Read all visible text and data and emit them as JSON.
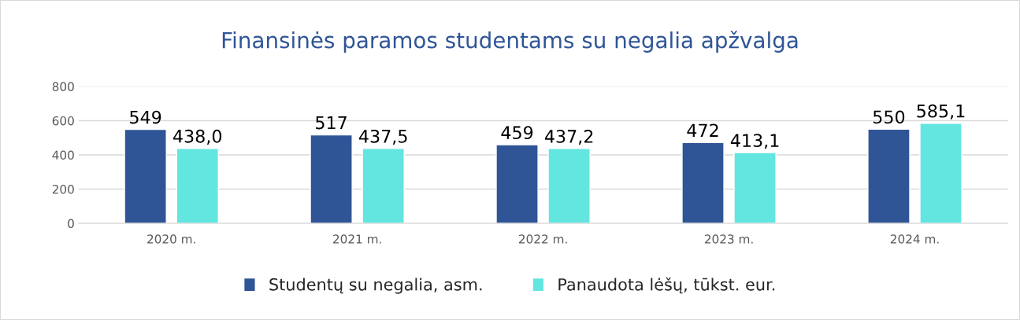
{
  "chart_data": {
    "type": "bar",
    "title": "Finansinės paramos studentams su negalia apžvalga",
    "categories": [
      "2020 m.",
      "2021 m.",
      "2022 m.",
      "2023 m.",
      "2024 m."
    ],
    "series": [
      {
        "name": "Studentų su negalia, asm.",
        "color": "#2f5597",
        "values": [
          549,
          517,
          459,
          472,
          550
        ],
        "value_labels": [
          "549",
          "517",
          "459",
          "472",
          "550"
        ]
      },
      {
        "name": "Panaudota lėšų, tūkst. eur.",
        "color": "#63e5e0",
        "values": [
          438.0,
          437.5,
          437.2,
          413.1,
          585.1
        ],
        "value_labels": [
          "438,0",
          "437,5",
          "437,2",
          "413,1",
          "585,1"
        ]
      }
    ],
    "ylim": [
      0,
      800
    ],
    "yticks": [
      0,
      200,
      400,
      600,
      800
    ],
    "grid": "y",
    "legend": "bottom"
  }
}
